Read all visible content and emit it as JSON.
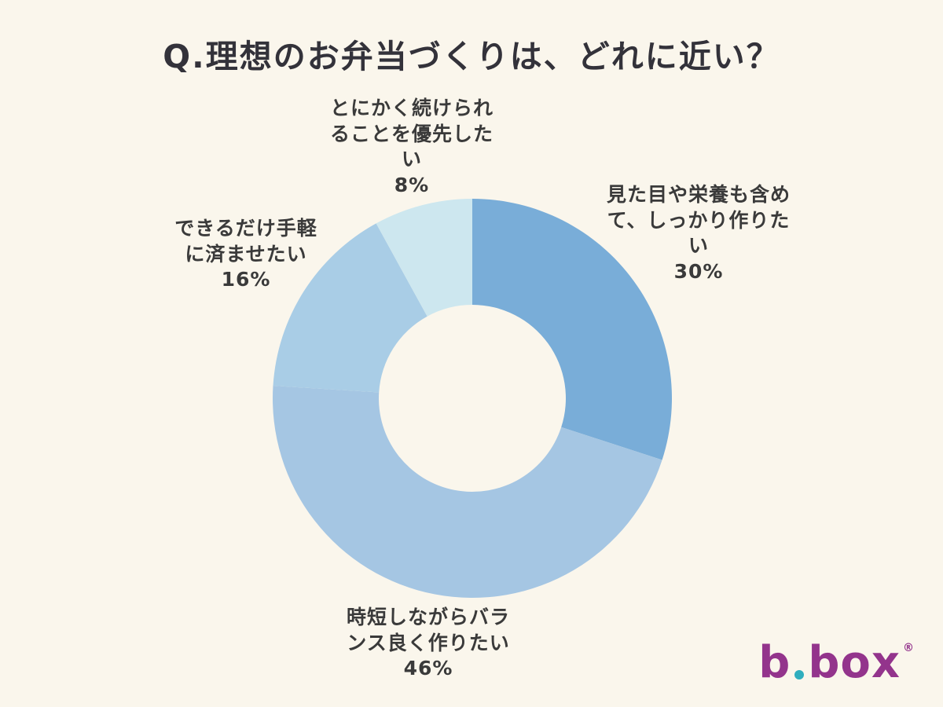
{
  "page": {
    "background_color": "#FAF6EC",
    "title": "Q.理想のお弁当づくりは、どれに近い？"
  },
  "chart_data": {
    "type": "pie",
    "subtype": "donut",
    "title": "Q.理想のお弁当づくりは、どれに近い？",
    "start_angle_deg": 0,
    "direction": "clockwise",
    "inner_radius_ratio": 0.47,
    "unit": "%",
    "legend_position": "labels-around-chart",
    "segments": [
      {
        "label": "見た目や栄養も含めて、しっかり作りたい",
        "value": 30,
        "percent_label": "30%",
        "color": "#79ADD8"
      },
      {
        "label": "時短しながらバランス良く作りたい",
        "value": 46,
        "percent_label": "46%",
        "color": "#A5C6E3"
      },
      {
        "label": "できるだけ手軽に済ませたい",
        "value": 16,
        "percent_label": "16%",
        "color": "#A9CDE6"
      },
      {
        "label": "とにかく続けられることを優先したい",
        "value": 8,
        "percent_label": "8%",
        "color": "#CDE7EF"
      }
    ]
  },
  "logo": {
    "b": "b",
    "box": "box",
    "registered": "®",
    "text_color": "#93348C",
    "dot_color": "#2FAEBE"
  }
}
